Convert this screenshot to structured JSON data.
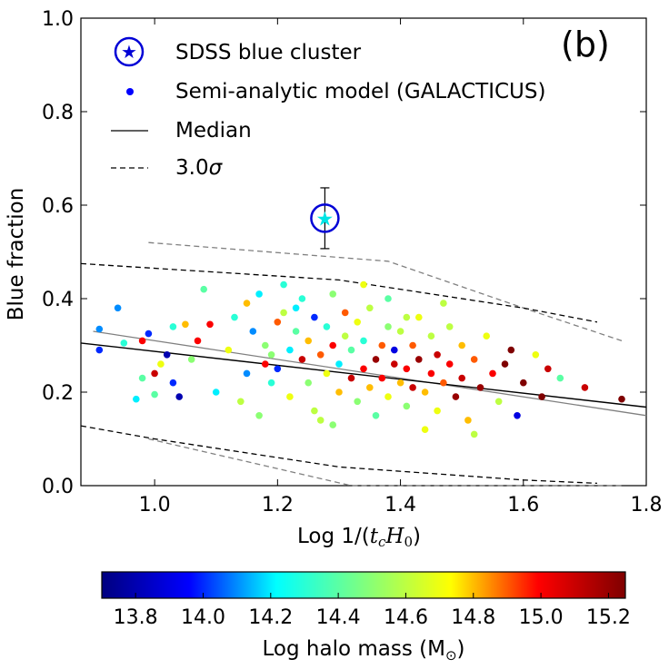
{
  "chart_data": {
    "type": "scatter",
    "panel_label": "(b)",
    "xlabel": "Log 1/(t_c H_0)",
    "xlabel_prefix": "Log 1/(",
    "xlabel_tc": "t",
    "xlabel_tc_sub": "c",
    "xlabel_h": "H",
    "xlabel_h_sub": "0",
    "xlabel_suffix": ")",
    "ylabel": "Blue fraction",
    "xlim": [
      0.88,
      1.8
    ],
    "ylim": [
      0.0,
      1.0
    ],
    "x_ticks": [
      "1.0",
      "1.2",
      "1.4",
      "1.6",
      "1.8"
    ],
    "x_tick_values": [
      1.0,
      1.2,
      1.4,
      1.6,
      1.8
    ],
    "y_ticks": [
      "0.0",
      "0.2",
      "0.4",
      "0.6",
      "0.8",
      "1.0"
    ],
    "y_tick_values": [
      0.0,
      0.2,
      0.4,
      0.6,
      0.8,
      1.0
    ],
    "grid": false,
    "legend_position": "top-left",
    "legend": {
      "sdss": "SDSS blue cluster",
      "model": "Semi-analytic model (GALACTICUS)",
      "median": "Median",
      "sigma": "3.0σ",
      "sigma_value": "3.0",
      "sigma_symbol": "σ"
    },
    "sdss_point": {
      "x": 1.277,
      "y": 0.572,
      "yerr_low": 0.065,
      "yerr_high": 0.065,
      "color": "#00e5e5",
      "ring_color": "#0000d6"
    },
    "median_line": {
      "points": [
        [
          0.88,
          0.305
        ],
        [
          1.8,
          0.168
        ]
      ],
      "color": "#000000"
    },
    "gray_line": {
      "points": [
        [
          0.9,
          0.33
        ],
        [
          1.8,
          0.15
        ]
      ],
      "color": "#808080"
    },
    "sigma_upper": {
      "points": [
        [
          0.88,
          0.475
        ],
        [
          1.3,
          0.44
        ],
        [
          1.6,
          0.38
        ],
        [
          1.72,
          0.35
        ]
      ],
      "color": "#000000"
    },
    "sigma_lower": {
      "points": [
        [
          0.88,
          0.128
        ],
        [
          1.0,
          0.1
        ],
        [
          1.3,
          0.04
        ],
        [
          1.6,
          0.012
        ],
        [
          1.72,
          0.005
        ]
      ],
      "color": "#000000"
    },
    "gray_upper": {
      "points": [
        [
          0.99,
          0.52
        ],
        [
          1.38,
          0.48
        ],
        [
          1.6,
          0.38
        ],
        [
          1.76,
          0.31
        ]
      ],
      "color": "#808080"
    },
    "gray_lower": {
      "points": [
        [
          0.99,
          0.1
        ],
        [
          1.32,
          0.0
        ],
        [
          1.62,
          0.0
        ],
        [
          1.76,
          0.0
        ]
      ],
      "color": "#808080"
    },
    "scatter_points": [
      {
        "x": 0.91,
        "y": 0.335,
        "c": 14.1
      },
      {
        "x": 0.91,
        "y": 0.29,
        "c": 14.0
      },
      {
        "x": 0.94,
        "y": 0.38,
        "c": 14.1
      },
      {
        "x": 0.95,
        "y": 0.305,
        "c": 14.3
      },
      {
        "x": 0.98,
        "y": 0.31,
        "c": 15.0
      },
      {
        "x": 0.98,
        "y": 0.23,
        "c": 14.4
      },
      {
        "x": 0.97,
        "y": 0.185,
        "c": 14.2
      },
      {
        "x": 0.99,
        "y": 0.325,
        "c": 14.0
      },
      {
        "x": 1.0,
        "y": 0.195,
        "c": 14.4
      },
      {
        "x": 1.0,
        "y": 0.24,
        "c": 15.1
      },
      {
        "x": 1.02,
        "y": 0.28,
        "c": 13.8
      },
      {
        "x": 1.01,
        "y": 0.26,
        "c": 14.7
      },
      {
        "x": 1.03,
        "y": 0.34,
        "c": 14.3
      },
      {
        "x": 1.03,
        "y": 0.22,
        "c": 14.0
      },
      {
        "x": 1.04,
        "y": 0.19,
        "c": 13.8
      },
      {
        "x": 1.05,
        "y": 0.345,
        "c": 14.8
      },
      {
        "x": 1.06,
        "y": 0.27,
        "c": 14.5
      },
      {
        "x": 1.07,
        "y": 0.31,
        "c": 15.0
      },
      {
        "x": 1.08,
        "y": 0.42,
        "c": 14.4
      },
      {
        "x": 1.09,
        "y": 0.345,
        "c": 15.0
      },
      {
        "x": 1.1,
        "y": 0.2,
        "c": 14.2
      },
      {
        "x": 1.12,
        "y": 0.29,
        "c": 14.7
      },
      {
        "x": 1.13,
        "y": 0.36,
        "c": 14.3
      },
      {
        "x": 1.14,
        "y": 0.18,
        "c": 14.6
      },
      {
        "x": 1.15,
        "y": 0.39,
        "c": 14.8
      },
      {
        "x": 1.16,
        "y": 0.33,
        "c": 14.1
      },
      {
        "x": 1.17,
        "y": 0.41,
        "c": 14.2
      },
      {
        "x": 1.18,
        "y": 0.26,
        "c": 15.0
      },
      {
        "x": 1.18,
        "y": 0.3,
        "c": 14.5
      },
      {
        "x": 1.19,
        "y": 0.22,
        "c": 14.3
      },
      {
        "x": 1.2,
        "y": 0.35,
        "c": 14.9
      },
      {
        "x": 1.2,
        "y": 0.25,
        "c": 14.0
      },
      {
        "x": 1.21,
        "y": 0.37,
        "c": 14.6
      },
      {
        "x": 1.22,
        "y": 0.29,
        "c": 14.2
      },
      {
        "x": 1.22,
        "y": 0.19,
        "c": 14.7
      },
      {
        "x": 1.23,
        "y": 0.33,
        "c": 14.4
      },
      {
        "x": 1.24,
        "y": 0.27,
        "c": 15.1
      },
      {
        "x": 1.24,
        "y": 0.4,
        "c": 14.3
      },
      {
        "x": 1.25,
        "y": 0.31,
        "c": 14.8
      },
      {
        "x": 1.25,
        "y": 0.22,
        "c": 14.5
      },
      {
        "x": 1.26,
        "y": 0.36,
        "c": 14.0
      },
      {
        "x": 1.26,
        "y": 0.16,
        "c": 14.6
      },
      {
        "x": 1.27,
        "y": 0.28,
        "c": 14.9
      },
      {
        "x": 1.28,
        "y": 0.34,
        "c": 14.3
      },
      {
        "x": 1.28,
        "y": 0.24,
        "c": 14.7
      },
      {
        "x": 1.29,
        "y": 0.3,
        "c": 15.0
      },
      {
        "x": 1.29,
        "y": 0.41,
        "c": 14.5
      },
      {
        "x": 1.3,
        "y": 0.26,
        "c": 14.2
      },
      {
        "x": 1.3,
        "y": 0.2,
        "c": 14.8
      },
      {
        "x": 1.31,
        "y": 0.32,
        "c": 14.6
      },
      {
        "x": 1.31,
        "y": 0.37,
        "c": 14.9
      },
      {
        "x": 1.32,
        "y": 0.23,
        "c": 15.1
      },
      {
        "x": 1.32,
        "y": 0.29,
        "c": 14.4
      },
      {
        "x": 1.33,
        "y": 0.35,
        "c": 14.7
      },
      {
        "x": 1.33,
        "y": 0.18,
        "c": 14.5
      },
      {
        "x": 1.34,
        "y": 0.25,
        "c": 15.0
      },
      {
        "x": 1.34,
        "y": 0.31,
        "c": 14.3
      },
      {
        "x": 1.35,
        "y": 0.21,
        "c": 14.8
      },
      {
        "x": 1.35,
        "y": 0.38,
        "c": 14.6
      },
      {
        "x": 1.36,
        "y": 0.27,
        "c": 15.2
      },
      {
        "x": 1.36,
        "y": 0.15,
        "c": 14.4
      },
      {
        "x": 1.37,
        "y": 0.3,
        "c": 14.9
      },
      {
        "x": 1.37,
        "y": 0.23,
        "c": 15.0
      },
      {
        "x": 1.38,
        "y": 0.34,
        "c": 14.5
      },
      {
        "x": 1.38,
        "y": 0.19,
        "c": 14.7
      },
      {
        "x": 1.39,
        "y": 0.26,
        "c": 15.1
      },
      {
        "x": 1.39,
        "y": 0.29,
        "c": 13.9
      },
      {
        "x": 1.4,
        "y": 0.22,
        "c": 14.8
      },
      {
        "x": 1.4,
        "y": 0.33,
        "c": 14.6
      },
      {
        "x": 1.41,
        "y": 0.25,
        "c": 15.0
      },
      {
        "x": 1.41,
        "y": 0.17,
        "c": 14.5
      },
      {
        "x": 1.42,
        "y": 0.3,
        "c": 14.9
      },
      {
        "x": 1.42,
        "y": 0.21,
        "c": 15.1
      },
      {
        "x": 1.43,
        "y": 0.36,
        "c": 14.7
      },
      {
        "x": 1.43,
        "y": 0.27,
        "c": 15.2
      },
      {
        "x": 1.44,
        "y": 0.2,
        "c": 14.8
      },
      {
        "x": 1.45,
        "y": 0.32,
        "c": 14.6
      },
      {
        "x": 1.45,
        "y": 0.24,
        "c": 15.0
      },
      {
        "x": 1.46,
        "y": 0.28,
        "c": 15.1
      },
      {
        "x": 1.46,
        "y": 0.16,
        "c": 14.7
      },
      {
        "x": 1.47,
        "y": 0.22,
        "c": 14.9
      },
      {
        "x": 1.48,
        "y": 0.34,
        "c": 14.6
      },
      {
        "x": 1.48,
        "y": 0.26,
        "c": 15.0
      },
      {
        "x": 1.49,
        "y": 0.19,
        "c": 15.2
      },
      {
        "x": 1.5,
        "y": 0.3,
        "c": 14.8
      },
      {
        "x": 1.5,
        "y": 0.23,
        "c": 15.1
      },
      {
        "x": 1.51,
        "y": 0.14,
        "c": 14.8
      },
      {
        "x": 1.52,
        "y": 0.27,
        "c": 14.9
      },
      {
        "x": 1.53,
        "y": 0.21,
        "c": 15.2
      },
      {
        "x": 1.54,
        "y": 0.32,
        "c": 14.7
      },
      {
        "x": 1.55,
        "y": 0.24,
        "c": 15.0
      },
      {
        "x": 1.56,
        "y": 0.18,
        "c": 14.6
      },
      {
        "x": 1.57,
        "y": 0.26,
        "c": 15.3
      },
      {
        "x": 1.58,
        "y": 0.29,
        "c": 15.3
      },
      {
        "x": 1.59,
        "y": 0.15,
        "c": 13.9
      },
      {
        "x": 1.6,
        "y": 0.22,
        "c": 15.3
      },
      {
        "x": 1.62,
        "y": 0.28,
        "c": 14.7
      },
      {
        "x": 1.63,
        "y": 0.19,
        "c": 15.3
      },
      {
        "x": 1.64,
        "y": 0.25,
        "c": 15.1
      },
      {
        "x": 1.66,
        "y": 0.23,
        "c": 14.4
      },
      {
        "x": 1.7,
        "y": 0.21,
        "c": 15.1
      },
      {
        "x": 1.76,
        "y": 0.185,
        "c": 15.3
      },
      {
        "x": 1.15,
        "y": 0.24,
        "c": 14.1
      },
      {
        "x": 1.17,
        "y": 0.15,
        "c": 14.5
      },
      {
        "x": 1.21,
        "y": 0.43,
        "c": 14.3
      },
      {
        "x": 1.27,
        "y": 0.14,
        "c": 14.6
      },
      {
        "x": 1.34,
        "y": 0.43,
        "c": 14.7
      },
      {
        "x": 1.44,
        "y": 0.12,
        "c": 14.7
      },
      {
        "x": 1.47,
        "y": 0.39,
        "c": 14.6
      },
      {
        "x": 1.52,
        "y": 0.11,
        "c": 14.6
      },
      {
        "x": 1.29,
        "y": 0.13,
        "c": 14.5
      },
      {
        "x": 1.38,
        "y": 0.4,
        "c": 14.4
      },
      {
        "x": 1.23,
        "y": 0.38,
        "c": 14.2
      },
      {
        "x": 1.19,
        "y": 0.28,
        "c": 14.5
      },
      {
        "x": 1.41,
        "y": 0.36,
        "c": 14.6
      }
    ],
    "colorbar": {
      "label": "Log halo mass (M⊙)",
      "label_prefix": "Log halo mass (M",
      "label_sub": "⊙",
      "label_suffix": ")",
      "min": 13.7,
      "max": 15.25,
      "ticks": [
        "13.8",
        "14.0",
        "14.2",
        "14.4",
        "14.6",
        "14.8",
        "15.0",
        "15.2"
      ],
      "tick_values": [
        13.8,
        14.0,
        14.2,
        14.4,
        14.6,
        14.8,
        15.0,
        15.2
      ],
      "colormap": "jet",
      "stops": [
        "#00007f",
        "#0000ff",
        "#00ffff",
        "#7fff7f",
        "#ffff00",
        "#ff0000",
        "#7f0000"
      ]
    }
  }
}
